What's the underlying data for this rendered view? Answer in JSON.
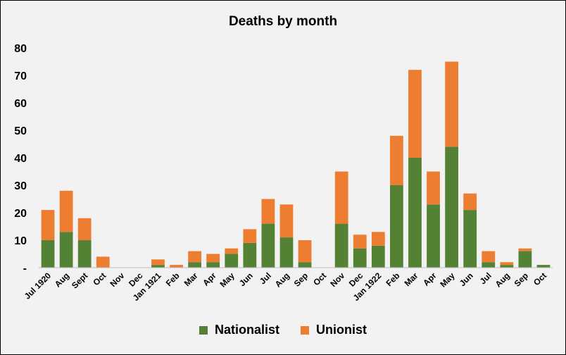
{
  "chart_data": {
    "type": "bar",
    "stacked": true,
    "title": "Deaths by month",
    "xlabel": "",
    "ylabel": "",
    "ylim": [
      0,
      80
    ],
    "yticks": [
      "-",
      "10",
      "20",
      "30",
      "40",
      "50",
      "60",
      "70",
      "80"
    ],
    "grid": false,
    "legend_position": "bottom",
    "categories": [
      "Jul 1920",
      "Aug",
      "Sept",
      "Oct",
      "Nov",
      "Dec",
      "Jan 1921",
      "Feb",
      "Mar",
      "Apr",
      "May",
      "Jun",
      "Jul",
      "Aug",
      "Sep",
      "Oct",
      "Nov",
      "Dec",
      "Jan 1922",
      "Feb",
      "Mar",
      "Apr",
      "May",
      "Jun",
      "Jul",
      "Aug",
      "Sep",
      "Oct"
    ],
    "series": [
      {
        "name": "Nationalist",
        "color": "#548235",
        "values": [
          10,
          13,
          10,
          0,
          0,
          0,
          1,
          0,
          2,
          2,
          5,
          9,
          16,
          11,
          2,
          0,
          16,
          7,
          8,
          30,
          40,
          23,
          44,
          21,
          2,
          1,
          6,
          1
        ]
      },
      {
        "name": "Unionist",
        "color": "#ed7d31",
        "values": [
          11,
          15,
          8,
          4,
          0,
          0,
          2,
          1,
          4,
          3,
          2,
          5,
          9,
          12,
          8,
          0,
          19,
          5,
          5,
          18,
          32,
          12,
          31,
          6,
          4,
          1,
          1,
          0
        ]
      }
    ]
  }
}
